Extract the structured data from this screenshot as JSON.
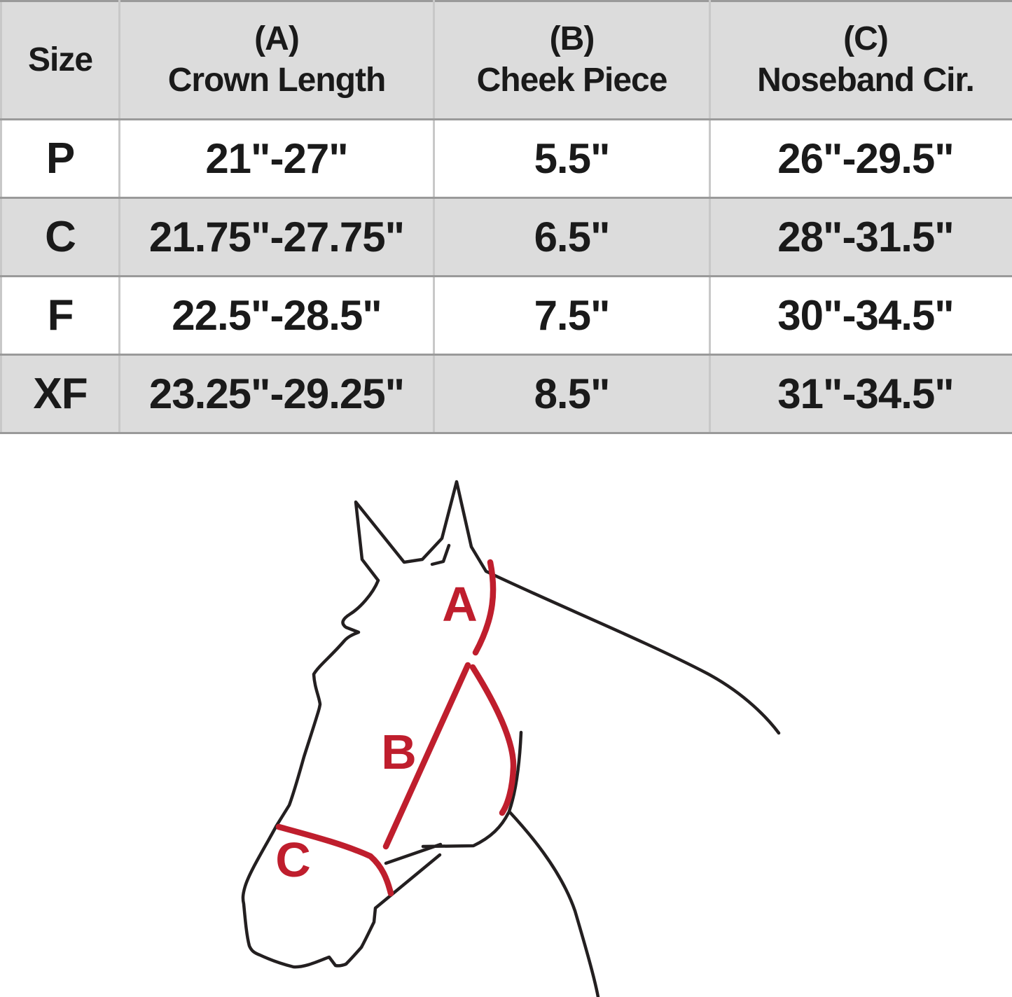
{
  "table": {
    "columns": [
      {
        "id": "size",
        "tag": "",
        "label": "Size"
      },
      {
        "id": "crown",
        "tag": "(A)",
        "label": "Crown Length"
      },
      {
        "id": "cheek",
        "tag": "(B)",
        "label": "Cheek Piece"
      },
      {
        "id": "noseband",
        "tag": "(C)",
        "label": "Noseband Cir."
      }
    ],
    "rows": [
      {
        "size": "P",
        "crown": "21\"-27\"",
        "cheek": "5.5\"",
        "noseband": "26\"-29.5\""
      },
      {
        "size": "C",
        "crown": "21.75\"-27.75\"",
        "cheek": "6.5\"",
        "noseband": "28\"-31.5\""
      },
      {
        "size": "F",
        "crown": "22.5\"-28.5\"",
        "cheek": "7.5\"",
        "noseband": "30\"-34.5\""
      },
      {
        "size": "XF",
        "crown": "23.25\"-29.25\"",
        "cheek": "8.5\"",
        "noseband": "31\"-34.5\""
      }
    ]
  },
  "diagram": {
    "description": "Horse head line drawing with halter measurement straps",
    "labels": {
      "crown": "A",
      "cheek": "B",
      "noseband": "C"
    }
  },
  "colors": {
    "accent_red": "#bf1e2d",
    "outline_black": "#231f20",
    "row_gray": "#dcdcdc",
    "border_gray": "#9a9a9a",
    "divider_gray": "#c8c8c8",
    "text_black": "#1a1a1a"
  }
}
